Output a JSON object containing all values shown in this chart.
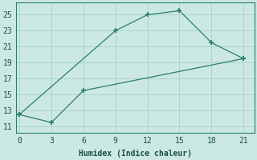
{
  "line1_x": [
    0,
    9,
    12,
    15,
    18,
    21
  ],
  "line1_y": [
    12.5,
    23,
    25,
    25.5,
    21.5,
    19.5
  ],
  "line2_x": [
    0,
    3,
    6,
    21
  ],
  "line2_y": [
    12.5,
    11.5,
    15.5,
    19.5
  ],
  "line_color": "#2a7d6e",
  "bg_color": "#cce8e2",
  "xlabel": "Humidex (Indice chaleur)",
  "xticks": [
    0,
    3,
    6,
    9,
    12,
    15,
    18,
    21
  ],
  "yticks": [
    11,
    13,
    15,
    17,
    19,
    21,
    23,
    25
  ],
  "xlim": [
    -0.3,
    22
  ],
  "ylim": [
    10.2,
    26.5
  ],
  "grid_color": "#aad4cc"
}
